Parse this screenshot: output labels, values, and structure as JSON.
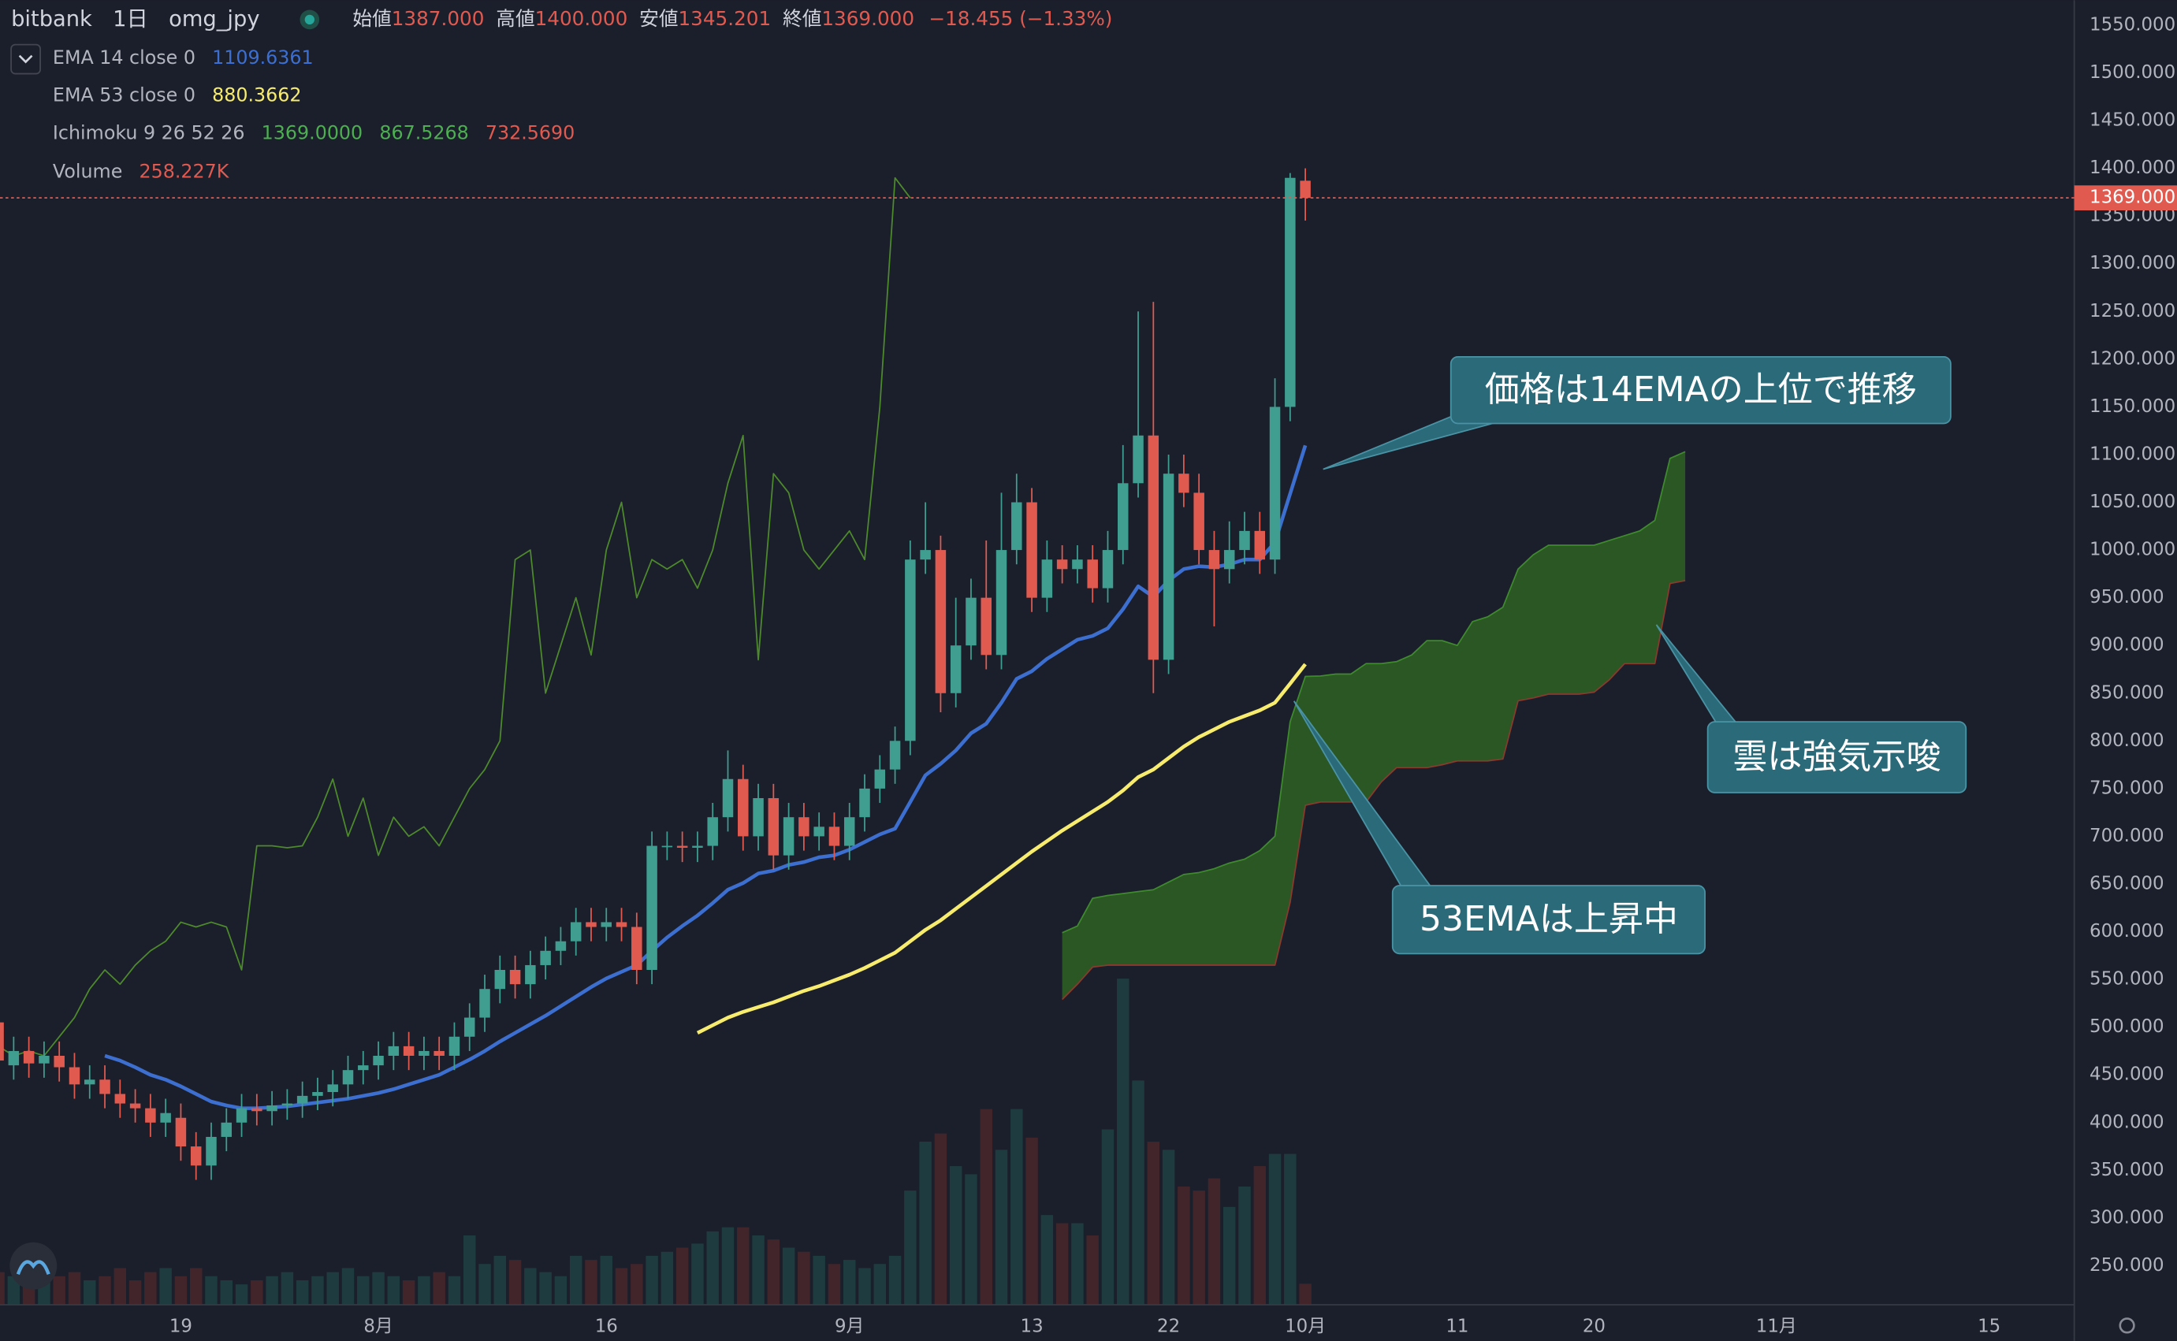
{
  "chart_data": {
    "type": "candlestick",
    "header": {
      "exchange": "bitbank",
      "interval": "1日",
      "symbol": "omg_jpy",
      "ohlc": [
        {
          "label": "始値",
          "value": "1387.000"
        },
        {
          "label": "高値",
          "value": "1400.000"
        },
        {
          "label": "安値",
          "value": "1345.201"
        },
        {
          "label": "終値",
          "value": "1369.000"
        }
      ],
      "change": "−18.455 (−1.33%)"
    },
    "legend": [
      {
        "name": "EMA 14 close 0",
        "values": [
          "1109.6361"
        ],
        "colors": [
          "#3c6fd0"
        ]
      },
      {
        "name": "EMA 53 close 0",
        "values": [
          "880.3662"
        ],
        "colors": [
          "#f7ec6e"
        ]
      },
      {
        "name": "Ichimoku 9 26 52 26",
        "values": [
          "1369.0000",
          "867.5268",
          "732.5690"
        ],
        "colors": [
          "#4caf50",
          "#4caf50",
          "#e15a50"
        ]
      },
      {
        "name": "Volume",
        "values": [
          "258.227K"
        ],
        "colors": [
          "#e15a50"
        ]
      }
    ],
    "up_color": "#3f9e90",
    "down_color": "#e15a50",
    "volume_up_color": "#1e3c40",
    "volume_down_color": "#42252b",
    "x": [
      188,
      189,
      190,
      191,
      192,
      193,
      194,
      195,
      196,
      197,
      198,
      199,
      200,
      201,
      202,
      203,
      204,
      205,
      206,
      207,
      208,
      209,
      210,
      211,
      212,
      213,
      214,
      215,
      216,
      217,
      218,
      219,
      220,
      221,
      222,
      223,
      224,
      225,
      226,
      227,
      228,
      229,
      230,
      231,
      232,
      233,
      234,
      235,
      236,
      237,
      238,
      239,
      240,
      241,
      242,
      243,
      244,
      245,
      246,
      247,
      248,
      249,
      250,
      251,
      252,
      253,
      254,
      255,
      256,
      257,
      258,
      259,
      260,
      261,
      262,
      263,
      264,
      265,
      266,
      267,
      268,
      269,
      270,
      271,
      272,
      273,
      274
    ],
    "open": [
      505,
      460,
      475,
      462,
      470,
      458,
      440,
      445,
      430,
      420,
      415,
      400,
      405,
      375,
      355,
      385,
      400,
      415,
      412,
      418,
      420,
      428,
      432,
      440,
      455,
      460,
      470,
      480,
      470,
      475,
      470,
      490,
      510,
      540,
      560,
      545,
      565,
      580,
      590,
      610,
      605,
      610,
      605,
      560,
      690,
      690,
      688,
      690,
      720,
      760,
      700,
      740,
      680,
      720,
      700,
      710,
      690,
      720,
      750,
      770,
      800,
      990,
      1000,
      850,
      900,
      950,
      890,
      1000,
      1050,
      950,
      990,
      980,
      990,
      960,
      1000,
      1070,
      1120,
      885,
      1080,
      1060,
      1000,
      980,
      1000,
      1020,
      990,
      1150,
      1387
    ],
    "high": [
      520,
      490,
      490,
      485,
      485,
      473,
      460,
      460,
      445,
      435,
      430,
      425,
      420,
      390,
      400,
      415,
      430,
      430,
      433,
      435,
      443,
      447,
      455,
      470,
      475,
      485,
      495,
      495,
      490,
      490,
      505,
      525,
      555,
      575,
      575,
      580,
      595,
      605,
      625,
      625,
      625,
      625,
      620,
      705,
      705,
      705,
      705,
      735,
      790,
      775,
      755,
      755,
      735,
      735,
      725,
      725,
      735,
      765,
      785,
      815,
      1010,
      1050,
      1015,
      950,
      970,
      1010,
      1060,
      1080,
      1065,
      1010,
      1005,
      1005,
      1005,
      1020,
      1110,
      1250,
      1260,
      1100,
      1100,
      1080,
      1020,
      1030,
      1040,
      1040,
      1180,
      1395,
      1400
    ],
    "low": [
      450,
      445,
      447,
      447,
      443,
      425,
      425,
      415,
      405,
      400,
      385,
      385,
      360,
      340,
      340,
      370,
      385,
      397,
      397,
      403,
      405,
      413,
      417,
      425,
      440,
      445,
      455,
      455,
      455,
      455,
      455,
      475,
      495,
      525,
      530,
      530,
      550,
      565,
      575,
      590,
      590,
      590,
      545,
      545,
      675,
      673,
      673,
      675,
      705,
      685,
      685,
      665,
      665,
      685,
      685,
      675,
      675,
      705,
      735,
      755,
      785,
      975,
      830,
      835,
      885,
      875,
      875,
      985,
      935,
      935,
      965,
      965,
      945,
      945,
      985,
      1055,
      850,
      870,
      1045,
      985,
      920,
      965,
      985,
      975,
      975,
      1135,
      1345.201
    ],
    "close": [
      465,
      475,
      462,
      470,
      458,
      440,
      445,
      430,
      420,
      415,
      400,
      410,
      375,
      355,
      385,
      400,
      415,
      412,
      418,
      420,
      428,
      432,
      440,
      455,
      460,
      470,
      480,
      470,
      475,
      470,
      490,
      510,
      540,
      560,
      545,
      565,
      580,
      590,
      610,
      605,
      610,
      605,
      560,
      690,
      690,
      688,
      690,
      720,
      760,
      700,
      740,
      680,
      720,
      700,
      710,
      690,
      720,
      750,
      770,
      800,
      990,
      1000,
      850,
      900,
      950,
      890,
      1000,
      1050,
      950,
      990,
      980,
      990,
      960,
      1000,
      1070,
      1120,
      885,
      1080,
      1060,
      1000,
      980,
      1000,
      1020,
      990,
      1150,
      1390,
      1369
    ],
    "volume": [
      400,
      350,
      300,
      450,
      350,
      400,
      300,
      350,
      450,
      300,
      400,
      450,
      350,
      450,
      350,
      300,
      250,
      300,
      350,
      400,
      300,
      350,
      400,
      450,
      350,
      400,
      350,
      300,
      350,
      400,
      350,
      850,
      500,
      600,
      550,
      450,
      400,
      350,
      600,
      550,
      600,
      450,
      500,
      600,
      650,
      700,
      750,
      900,
      950,
      950,
      850,
      800,
      700,
      650,
      600,
      500,
      550,
      450,
      500,
      600,
      1400,
      2000,
      2100,
      1700,
      1600,
      2400,
      1900,
      2400,
      2050,
      1100,
      1000,
      1000,
      850,
      2150,
      4000,
      2750,
      2000,
      1900,
      1450,
      1400,
      1550,
      1200,
      1450,
      1700,
      1850,
      1850,
      258.227
    ],
    "ema14": {
      "color": "#3c6fd0",
      "values": [
        null,
        null,
        null,
        null,
        null,
        null,
        null,
        470,
        465,
        458,
        450,
        445,
        438,
        430,
        422,
        418,
        415,
        415,
        416,
        417,
        419,
        421,
        423,
        425,
        428,
        431,
        435,
        440,
        445,
        450,
        458,
        466,
        475,
        485,
        494,
        503,
        512,
        522,
        532,
        542,
        551,
        558,
        565,
        580,
        594,
        606,
        617,
        630,
        644,
        651,
        661,
        664,
        670,
        673,
        678,
        680,
        686,
        694,
        702,
        708,
        736,
        764,
        776,
        790,
        808,
        818,
        840,
        865,
        873,
        886,
        896,
        906,
        910,
        918,
        938,
        962,
        951,
        968,
        980,
        983,
        982,
        985,
        990,
        990,
        1008,
        1059,
        1109.6361
      ]
    },
    "ema53": {
      "color": "#f7ec6e",
      "values": [
        null,
        null,
        null,
        null,
        null,
        null,
        null,
        null,
        null,
        null,
        null,
        null,
        null,
        null,
        null,
        null,
        null,
        null,
        null,
        null,
        null,
        null,
        null,
        null,
        null,
        null,
        null,
        null,
        null,
        null,
        null,
        null,
        null,
        null,
        null,
        null,
        null,
        null,
        null,
        null,
        null,
        null,
        null,
        null,
        null,
        null,
        494,
        502,
        510,
        516,
        521,
        526,
        532,
        538,
        543,
        549,
        555,
        562,
        570,
        578,
        590,
        602,
        612,
        624,
        636,
        648,
        660,
        672,
        684,
        695,
        706,
        716,
        726,
        736,
        748,
        762,
        770,
        782,
        794,
        804,
        812,
        820,
        826,
        832,
        840,
        860,
        880.3662
      ]
    },
    "lagging_span": {
      "color": "#4d8a2b",
      "displacement": 26
    },
    "cloud": {
      "color": "#2d6222",
      "span_a_color": "#3f8a2e",
      "span_b_color": "#8a3a2e",
      "x": [
        258,
        259,
        260,
        261,
        262,
        263,
        264,
        265,
        266,
        267,
        268,
        269,
        270,
        271,
        272,
        273,
        274,
        275,
        276,
        277,
        278,
        279,
        280,
        281,
        282,
        283,
        284,
        285,
        286,
        287,
        288,
        289,
        290,
        291,
        292,
        293,
        294,
        295,
        296,
        297,
        298,
        299
      ],
      "span_a": [
        599,
        606,
        635,
        638,
        640,
        642,
        644,
        652,
        660,
        662,
        666,
        672,
        676,
        685,
        700,
        820,
        867.5268,
        868,
        870,
        870,
        881,
        881,
        883,
        890,
        905,
        905,
        900,
        925,
        930,
        940,
        980,
        995,
        1005,
        1005,
        1005,
        1005,
        1010,
        1015,
        1020,
        1031,
        1096,
        1103
      ],
      "span_b": [
        529,
        545,
        563,
        565,
        565,
        565,
        565,
        565,
        565,
        565,
        565,
        565,
        565,
        565,
        565,
        631,
        732.569,
        736,
        736,
        736,
        736,
        757,
        772,
        772,
        772,
        775,
        779,
        779,
        779,
        781,
        842,
        845,
        849,
        849,
        849,
        851,
        864,
        881,
        881,
        881,
        965,
        968
      ]
    },
    "last_price": {
      "value": 1369,
      "label": "1369.000",
      "color": "#e15a50"
    },
    "xlim": [
      188.1,
      324.6
    ],
    "ylim": [
      209.1,
      1576.2
    ],
    "xticks": [
      {
        "value": 200,
        "label": "19"
      },
      {
        "value": 213,
        "label": "8月"
      },
      {
        "value": 228,
        "label": "16"
      },
      {
        "value": 244,
        "label": "9月"
      },
      {
        "value": 256,
        "label": "13"
      },
      {
        "value": 265,
        "label": "22"
      },
      {
        "value": 274,
        "label": "10月"
      },
      {
        "value": 284,
        "label": "11"
      },
      {
        "value": 293,
        "label": "20"
      },
      {
        "value": 305,
        "label": "11月"
      },
      {
        "value": 319,
        "label": "15"
      }
    ],
    "yticks": [
      {
        "value": 250,
        "label": "250.000"
      },
      {
        "value": 300,
        "label": "300.000"
      },
      {
        "value": 350,
        "label": "350.000"
      },
      {
        "value": 400,
        "label": "400.000"
      },
      {
        "value": 450,
        "label": "450.000"
      },
      {
        "value": 500,
        "label": "500.000"
      },
      {
        "value": 550,
        "label": "550.000"
      },
      {
        "value": 600,
        "label": "600.000"
      },
      {
        "value": 650,
        "label": "650.000"
      },
      {
        "value": 700,
        "label": "700.000"
      },
      {
        "value": 750,
        "label": "750.000"
      },
      {
        "value": 800,
        "label": "800.000"
      },
      {
        "value": 850,
        "label": "850.000"
      },
      {
        "value": 900,
        "label": "900.000"
      },
      {
        "value": 950,
        "label": "950.000"
      },
      {
        "value": 1000,
        "label": "1000.000"
      },
      {
        "value": 1050,
        "label": "1050.000"
      },
      {
        "value": 1100,
        "label": "1100.000"
      },
      {
        "value": 1150,
        "label": "1150.000"
      },
      {
        "value": 1200,
        "label": "1200.000"
      },
      {
        "value": 1250,
        "label": "1250.000"
      },
      {
        "value": 1300,
        "label": "1300.000"
      },
      {
        "value": 1350,
        "label": "1350.000"
      },
      {
        "value": 1400,
        "label": "1400.000"
      },
      {
        "value": 1450,
        "label": "1450.000"
      },
      {
        "value": 1500,
        "label": "1500.000"
      },
      {
        "value": 1550,
        "label": "1550.000"
      }
    ],
    "grid": false,
    "annotations": [
      {
        "text": "価格は14EMAの上位で推移"
      },
      {
        "text": "雲は強気示唆"
      },
      {
        "text": "53EMAは上昇中"
      }
    ]
  }
}
